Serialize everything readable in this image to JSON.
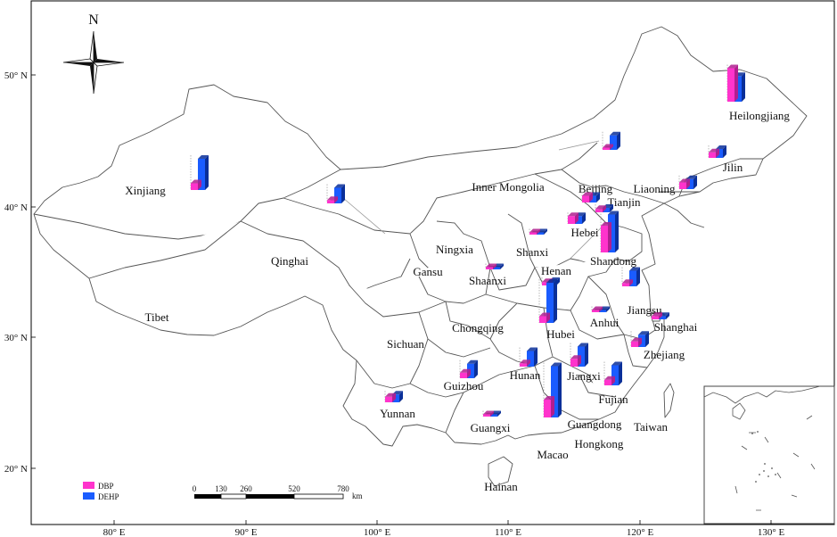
{
  "title": "",
  "colors": {
    "DBP": "#ff33cc",
    "DBP_side": "#b01e8f",
    "DEHP": "#1a5cff",
    "DEHP_side": "#0a2f99",
    "boundary": "#555555"
  },
  "north_label": "N",
  "legend": [
    {
      "key": "DBP",
      "label": "DBP"
    },
    {
      "key": "DEHP",
      "label": "DEHP"
    }
  ],
  "scale_bar": {
    "ticks": [
      "0",
      "130",
      "260",
      "520",
      "780"
    ],
    "unit": "km"
  },
  "lon_labels": [
    "80° E",
    "90° E",
    "100° E",
    "110° E",
    "120° E",
    "130° E"
  ],
  "lat_labels": [
    "50° N",
    "40° N",
    "30° N",
    "20° N"
  ],
  "provinces": [
    "Heilongjiang",
    "Jilin",
    "Liaoning",
    "Inner Mongolia",
    "Beijing",
    "Tianjin",
    "Hebei",
    "Shanxi",
    "Shandong",
    "Henan",
    "Ningxia",
    "Gansu",
    "Qinghai",
    "Xinjiang",
    "Tibet",
    "Shaanxi",
    "Sichuan",
    "Chongqing",
    "Hubei",
    "Anhui",
    "Jiangsu",
    "Shanghai",
    "Zhejiang",
    "Jiangxi",
    "Hunan",
    "Guizhou",
    "Yunnan",
    "Guangxi",
    "Guangdong",
    "Fujian",
    "Taiwan",
    "Hongkong",
    "Macao",
    "Hainan"
  ],
  "bars": [
    {
      "province": "Heilongjiang",
      "DBP": 30,
      "DEHP": 23
    },
    {
      "province": "Jilin",
      "DBP": 5,
      "DEHP": 8
    },
    {
      "province": "Liaoning",
      "DBP": 6,
      "DEHP": 9
    },
    {
      "province": "Inner Mongolia (east)",
      "DBP": 2,
      "DEHP": 13
    },
    {
      "province": "Inner Mongolia (west)",
      "DBP": 3,
      "DEHP": 14
    },
    {
      "province": "Xinjiang",
      "DBP": 6,
      "DEHP": 28
    },
    {
      "province": "Beijing",
      "DBP": 6,
      "DEHP": 6
    },
    {
      "province": "Tianjin",
      "DBP": 3,
      "DEHP": 4
    },
    {
      "province": "Hebei",
      "DBP": 7,
      "DEHP": 7
    },
    {
      "province": "Shanxi",
      "DBP": 2,
      "DEHP": 2
    },
    {
      "province": "Shandong",
      "DBP": 24,
      "DEHP": 34
    },
    {
      "province": "Shaanxi",
      "DBP": 2,
      "DEHP": 2
    },
    {
      "province": "Henan",
      "DBP": 3,
      "DEHP": 4
    },
    {
      "province": "Hubei",
      "DBP": 6,
      "DEHP": 36
    },
    {
      "province": "Anhui",
      "DBP": 2,
      "DEHP": 2
    },
    {
      "province": "Jiangsu",
      "DBP": 3,
      "DEHP": 14
    },
    {
      "province": "Shanghai",
      "DBP": 3,
      "DEHP": 3
    },
    {
      "province": "Zhejiang",
      "DBP": 5,
      "DEHP": 11
    },
    {
      "province": "Jiangxi",
      "DBP": 7,
      "DEHP": 18
    },
    {
      "province": "Hunan",
      "DBP": 3,
      "DEHP": 14
    },
    {
      "province": "Fujian",
      "DBP": 5,
      "DEHP": 18
    },
    {
      "province": "Guizhou",
      "DBP": 5,
      "DEHP": 13
    },
    {
      "province": "Yunnan",
      "DBP": 5,
      "DEHP": 7
    },
    {
      "province": "Guangxi",
      "DBP": 2,
      "DEHP": 2
    },
    {
      "province": "Guangdong",
      "DBP": 16,
      "DEHP": 46
    }
  ]
}
